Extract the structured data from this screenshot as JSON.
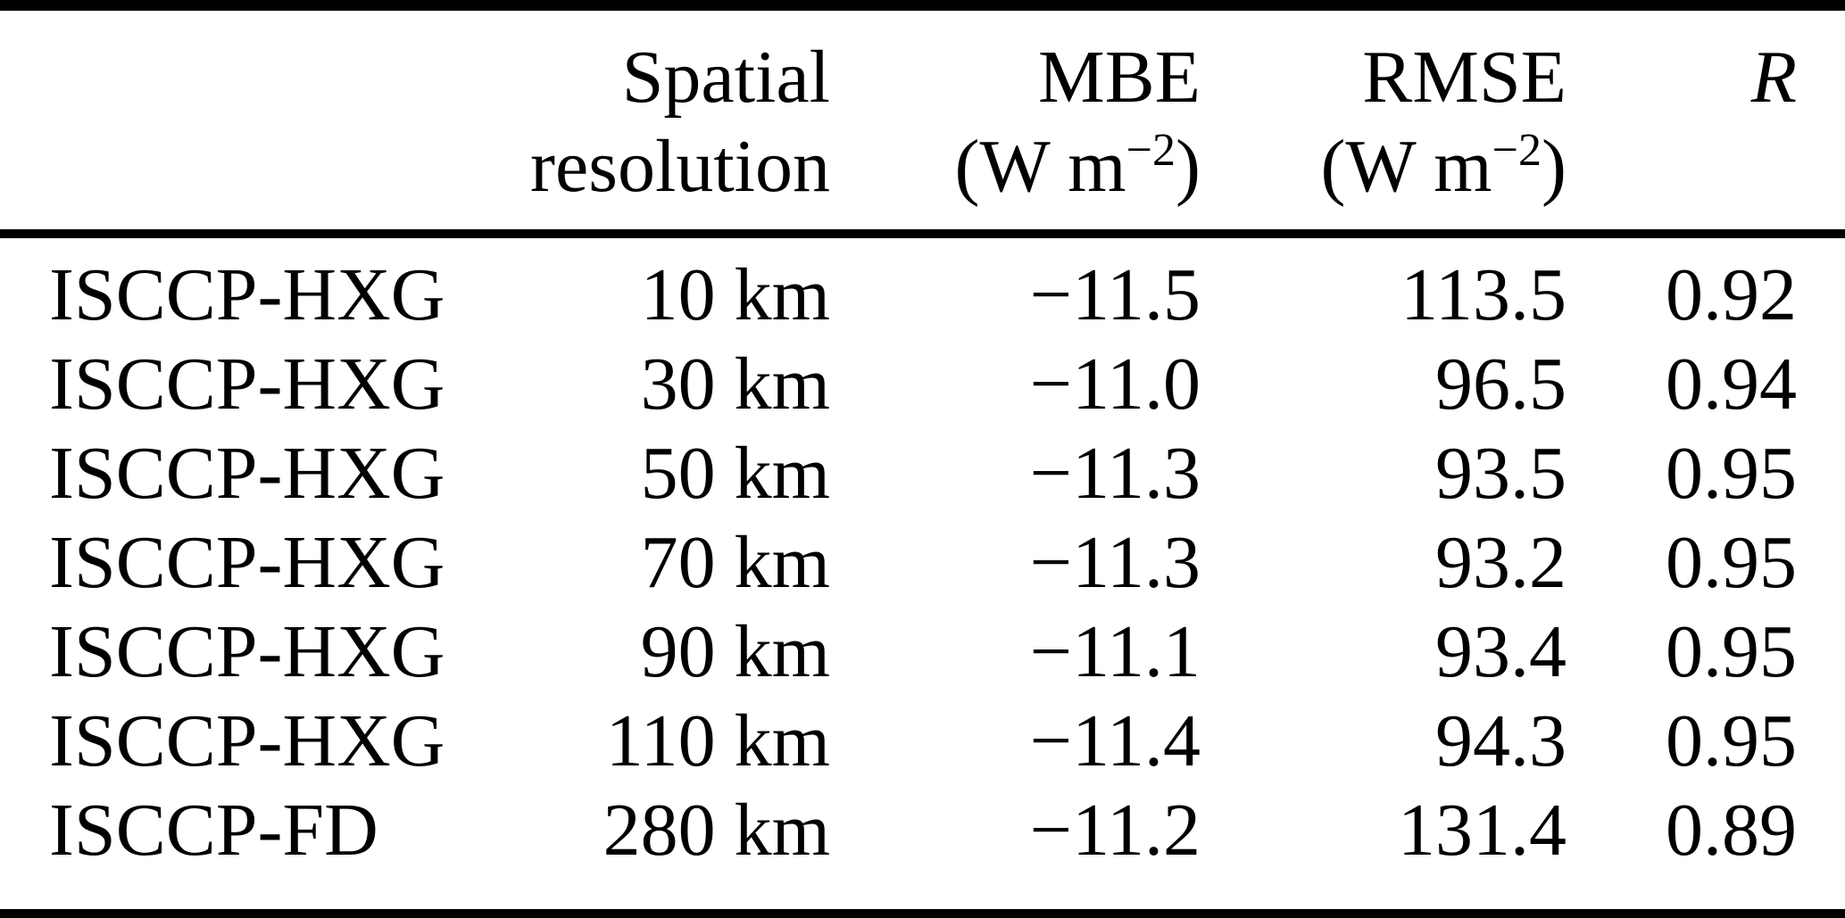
{
  "table": {
    "header": {
      "dataset": "",
      "resolution": {
        "line1": "Spatial",
        "line2": "resolution"
      },
      "mbe": {
        "label": "MBE",
        "unit_base": "(W m",
        "unit_sup": "−2",
        "unit_close": ")"
      },
      "rmse": {
        "label": "RMSE",
        "unit_base": "(W m",
        "unit_sup": "−2",
        "unit_close": ")"
      },
      "r": {
        "label": "R"
      }
    },
    "rows": [
      {
        "dataset": "ISCCP-HXG",
        "resolution": "10 km",
        "mbe": "−11.5",
        "rmse": "113.5",
        "r": "0.92"
      },
      {
        "dataset": "ISCCP-HXG",
        "resolution": "30 km",
        "mbe": "−11.0",
        "rmse": "96.5",
        "r": "0.94"
      },
      {
        "dataset": "ISCCP-HXG",
        "resolution": "50 km",
        "mbe": "−11.3",
        "rmse": "93.5",
        "r": "0.95"
      },
      {
        "dataset": "ISCCP-HXG",
        "resolution": "70 km",
        "mbe": "−11.3",
        "rmse": "93.2",
        "r": "0.95"
      },
      {
        "dataset": "ISCCP-HXG",
        "resolution": "90 km",
        "mbe": "−11.1",
        "rmse": "93.4",
        "r": "0.95"
      },
      {
        "dataset": "ISCCP-HXG",
        "resolution": "110 km",
        "mbe": "−11.4",
        "rmse": "94.3",
        "r": "0.95"
      },
      {
        "dataset": "ISCCP-FD",
        "resolution": "280 km",
        "mbe": "−11.2",
        "rmse": "131.4",
        "r": "0.89"
      }
    ],
    "colors": {
      "text": "#000000",
      "background": "#ffffff",
      "rule": "#000000"
    }
  }
}
